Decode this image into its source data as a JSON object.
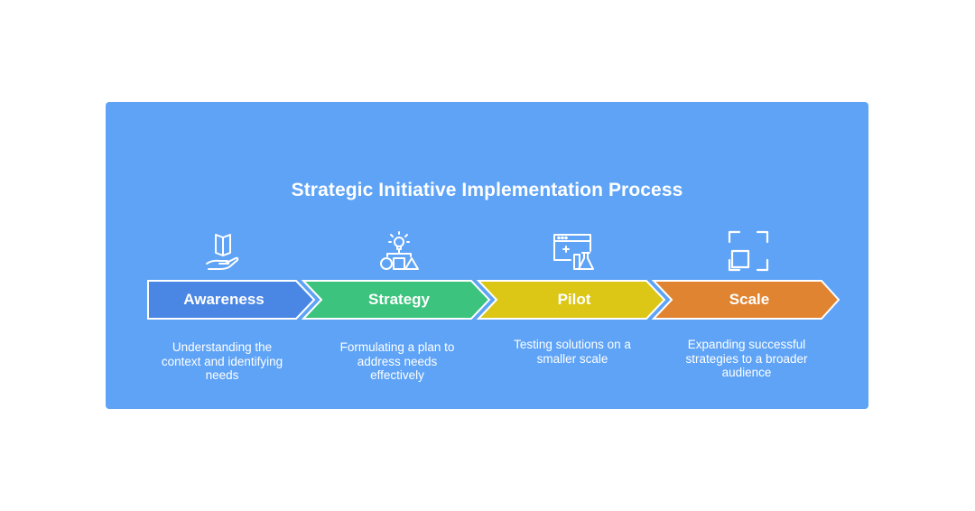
{
  "title": "Strategic Initiative Implementation Process",
  "colors": {
    "panel": "#5ea3f6",
    "awareness": "#4a86e4",
    "strategy": "#3cc37d",
    "pilot": "#dcc616",
    "scale": "#e08431"
  },
  "stages": [
    {
      "label": "Awareness",
      "description": "Understanding the context and identifying needs",
      "icon": "book-hand-icon"
    },
    {
      "label": "Strategy",
      "description": "Formulating a plan to address needs effectively",
      "icon": "lightbulb-shapes-icon"
    },
    {
      "label": "Pilot",
      "description": "Testing solutions on a smaller scale",
      "icon": "browser-lab-icon"
    },
    {
      "label": "Scale",
      "description": "Expanding successful strategies to a broader audience",
      "icon": "expand-corners-icon"
    }
  ]
}
